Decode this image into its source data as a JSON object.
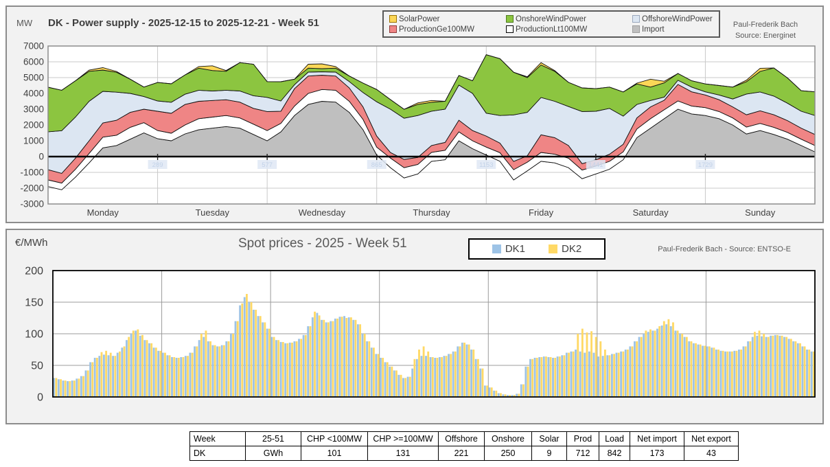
{
  "top_chart": {
    "unit_label": "MW",
    "title": "DK - Power supply - 2025-12-15 to 2025-12-21 - Week 51",
    "attribution_line1": "Paul-Frederik Bach",
    "attribution_line2": "Source: Energinet",
    "y_ticks": [
      7000,
      6000,
      5000,
      4000,
      3000,
      2000,
      1000,
      0,
      -1000,
      -2000,
      -3000
    ],
    "day_labels": [
      "Monday",
      "Tuesday",
      "Wednesday",
      "Thursday",
      "Friday",
      "Saturday",
      "Sunday"
    ],
    "watermark_labels": [
      "289",
      "577",
      "865",
      "1153",
      "1441",
      "1729"
    ],
    "legend": [
      {
        "label": "SolarPower",
        "color": "#FCD757",
        "border": "#997300"
      },
      {
        "label": "OnshoreWindPower",
        "color": "#8CC540",
        "border": "#4E7A1F"
      },
      {
        "label": "OffshoreWindPower",
        "color": "#DCE6F2",
        "border": "#9AA8BD"
      },
      {
        "label": "ProductionGe100MW",
        "color": "#EF8585",
        "border": "#8F3A3A"
      },
      {
        "label": "ProductionLt100MW",
        "color": "#FFFFFF",
        "border": "#000000"
      },
      {
        "label": "Import",
        "color": "#BFBFBF",
        "border": "#9E9E9E"
      }
    ]
  },
  "spot_chart": {
    "unit_label": "€/MWh",
    "title": "Spot prices - 2025 - Week 51",
    "attribution": "Paul-Frederik Bach - Source: ENTSO-E",
    "y_ticks": [
      0,
      50,
      100,
      150,
      200
    ],
    "legend": [
      {
        "label": "DK1",
        "color": "#9DC3E6"
      },
      {
        "label": "DK2",
        "color": "#FFD966"
      }
    ]
  },
  "chart_data": [
    {
      "type": "area",
      "stacked": true,
      "title": "DK - Power supply - 2025-12-15 to 2025-12-21 - Week 51",
      "ylabel": "MW",
      "ylim": [
        -3000,
        7000
      ],
      "x_hours": 168,
      "sample_step_hours": 3,
      "x_day_labels": [
        "Monday",
        "Tuesday",
        "Wednesday",
        "Thursday",
        "Friday",
        "Saturday",
        "Sunday"
      ],
      "series": [
        {
          "name": "Import",
          "color": "#BFBFBF",
          "values": [
            -1900,
            -2100,
            -1300,
            -400,
            550,
            700,
            1100,
            1500,
            1130,
            1000,
            1435,
            1700,
            1800,
            1900,
            1800,
            1400,
            1000,
            1565,
            2600,
            3300,
            3500,
            3450,
            2800,
            1700,
            100,
            -700,
            -1350,
            -1100,
            -300,
            -200,
            1000,
            500,
            100,
            -300,
            -1480,
            -900,
            -300,
            -400,
            -700,
            -1400,
            -1100,
            -800,
            -200,
            1200,
            1800,
            2400,
            3000,
            2700,
            2600,
            2400,
            2000,
            1430,
            1650,
            1400,
            1100,
            700,
            300
          ]
        },
        {
          "name": "ProductionLt100MW",
          "color": "#FFFFFF",
          "values": [
            420,
            420,
            500,
            600,
            680,
            650,
            750,
            650,
            520,
            480,
            565,
            700,
            700,
            700,
            650,
            650,
            650,
            535,
            600,
            700,
            750,
            750,
            700,
            650,
            500,
            610,
            650,
            600,
            565,
            600,
            565,
            500,
            500,
            550,
            650,
            550,
            560,
            550,
            600,
            550,
            500,
            500,
            500,
            550,
            600,
            570,
            520,
            500,
            500,
            450,
            450,
            440,
            450,
            450,
            430,
            400,
            400
          ]
        },
        {
          "name": "ProductionGe100MW",
          "color": "#EF8585",
          "values": [
            650,
            620,
            700,
            800,
            900,
            950,
            950,
            850,
            1220,
            1260,
            1300,
            1100,
            1050,
            1000,
            1000,
            1000,
            1200,
            770,
            1100,
            1100,
            900,
            900,
            850,
            800,
            700,
            350,
            520,
            450,
            435,
            500,
            740,
            650,
            700,
            600,
            520,
            400,
            1120,
            1050,
            800,
            400,
            400,
            450,
            480,
            700,
            750,
            600,
            1050,
            900,
            800,
            750,
            700,
            780,
            800,
            800,
            750,
            700,
            700
          ]
        },
        {
          "name": "OffshoreWindPower",
          "color": "#DCE6F2",
          "values": [
            2400,
            2700,
            2600,
            2500,
            2000,
            1780,
            1200,
            800,
            650,
            700,
            650,
            700,
            600,
            600,
            700,
            800,
            900,
            650,
            250,
            250,
            220,
            250,
            400,
            900,
            2170,
            2740,
            2610,
            2650,
            2174,
            2100,
            2220,
            2350,
            1450,
            1750,
            2950,
            2750,
            2360,
            2300,
            2470,
            3300,
            3070,
            2900,
            1780,
            850,
            400,
            200,
            260,
            300,
            200,
            300,
            500,
            1310,
            1190,
            1180,
            1100,
            1070,
            1200
          ]
        },
        {
          "name": "OnshoreWindPower",
          "color": "#8CC540",
          "values": [
            2820,
            2560,
            2300,
            1900,
            1350,
            1260,
            900,
            600,
            1170,
            1170,
            1220,
            1400,
            1300,
            1200,
            1800,
            2000,
            1000,
            1220,
            350,
            250,
            200,
            250,
            350,
            600,
            780,
            610,
            565,
            700,
            565,
            500,
            610,
            800,
            3700,
            3600,
            2700,
            2200,
            2060,
            1900,
            1530,
            1500,
            1430,
            1350,
            1530,
            1300,
            850,
            900,
            430,
            400,
            500,
            600,
            750,
            780,
            1300,
            1780,
            1600,
            1300,
            1500
          ]
        },
        {
          "name": "SolarPower",
          "color": "#FCD757",
          "values": [
            0,
            0,
            0,
            80,
            150,
            50,
            0,
            0,
            0,
            0,
            0,
            100,
            300,
            50,
            0,
            0,
            0,
            0,
            0,
            250,
            300,
            100,
            0,
            0,
            0,
            0,
            0,
            100,
            115,
            0,
            0,
            0,
            0,
            0,
            0,
            50,
            150,
            50,
            0,
            0,
            0,
            0,
            0,
            50,
            500,
            100,
            0,
            0,
            0,
            0,
            0,
            100,
            200,
            0,
            0,
            0,
            0
          ]
        }
      ]
    },
    {
      "type": "bar",
      "title": "Spot prices - 2025 - Week 51",
      "ylabel": "€/MWh",
      "ylim": [
        0,
        200
      ],
      "x_hours": 168,
      "sample_step_hours": 1,
      "series": [
        {
          "name": "DK1",
          "color": "#9DC3E6",
          "values": [
            30,
            28,
            26,
            25,
            26,
            29,
            33,
            42,
            55,
            62,
            65,
            67,
            66,
            65,
            70,
            78,
            90,
            100,
            105,
            97,
            90,
            85,
            78,
            73,
            70,
            66,
            63,
            62,
            63,
            65,
            70,
            80,
            90,
            95,
            88,
            82,
            80,
            82,
            88,
            100,
            120,
            145,
            158,
            150,
            138,
            128,
            118,
            108,
            95,
            90,
            87,
            85,
            86,
            88,
            92,
            98,
            112,
            126,
            133,
            122,
            118,
            120,
            124,
            127,
            128,
            126,
            122,
            115,
            100,
            88,
            78,
            68,
            62,
            55,
            48,
            42,
            35,
            30,
            32,
            45,
            60,
            65,
            65,
            63,
            62,
            63,
            65,
            68,
            72,
            80,
            86,
            83,
            75,
            60,
            45,
            18,
            15,
            10,
            6,
            4,
            3,
            3,
            5,
            20,
            48,
            60,
            62,
            63,
            64,
            63,
            62,
            64,
            66,
            70,
            72,
            75,
            72,
            70,
            72,
            70,
            64,
            65,
            66,
            68,
            70,
            72,
            75,
            80,
            88,
            95,
            100,
            103,
            105,
            108,
            113,
            115,
            112,
            105,
            100,
            95,
            88,
            85,
            83,
            81,
            80,
            78,
            75,
            73,
            72,
            72,
            73,
            75,
            80,
            88,
            95,
            97,
            96,
            95,
            97,
            98,
            97,
            95,
            92,
            88,
            85,
            80,
            75,
            72
          ]
        },
        {
          "name": "DK2",
          "color": "#FFD966",
          "values": [
            30,
            28,
            26,
            25,
            26,
            29,
            33,
            42,
            55,
            62,
            71,
            73,
            70,
            65,
            72,
            80,
            95,
            105,
            107,
            98,
            90,
            85,
            78,
            73,
            70,
            66,
            63,
            62,
            63,
            65,
            70,
            80,
            100,
            105,
            88,
            82,
            80,
            82,
            88,
            100,
            120,
            148,
            163,
            150,
            138,
            128,
            118,
            108,
            95,
            90,
            87,
            85,
            86,
            88,
            92,
            98,
            112,
            135,
            129,
            122,
            118,
            120,
            124,
            127,
            125,
            126,
            122,
            115,
            100,
            88,
            78,
            68,
            62,
            55,
            48,
            42,
            35,
            30,
            32,
            60,
            75,
            80,
            72,
            63,
            62,
            63,
            65,
            68,
            72,
            80,
            86,
            83,
            75,
            60,
            45,
            18,
            15,
            10,
            6,
            4,
            3,
            3,
            5,
            20,
            48,
            60,
            62,
            63,
            64,
            63,
            62,
            64,
            66,
            70,
            72,
            100,
            108,
            102,
            104,
            95,
            88,
            75,
            66,
            68,
            70,
            72,
            75,
            80,
            88,
            95,
            105,
            107,
            105,
            112,
            120,
            123,
            118,
            105,
            100,
            95,
            88,
            85,
            83,
            81,
            80,
            78,
            75,
            73,
            72,
            72,
            73,
            75,
            80,
            88,
            103,
            105,
            100,
            95,
            97,
            98,
            97,
            95,
            92,
            88,
            85,
            80,
            75,
            72
          ]
        }
      ]
    }
  ],
  "table": {
    "headers": [
      "Week",
      "25-51",
      "CHP <100MW",
      "CHP >=100MW",
      "Offshore",
      "Onshore",
      "Solar",
      "Prod",
      "Load",
      "Net import",
      "Net export"
    ],
    "rows": [
      [
        "DK",
        "GWh",
        "101",
        "131",
        "221",
        "250",
        "9",
        "712",
        "842",
        "173",
        "43"
      ]
    ]
  }
}
